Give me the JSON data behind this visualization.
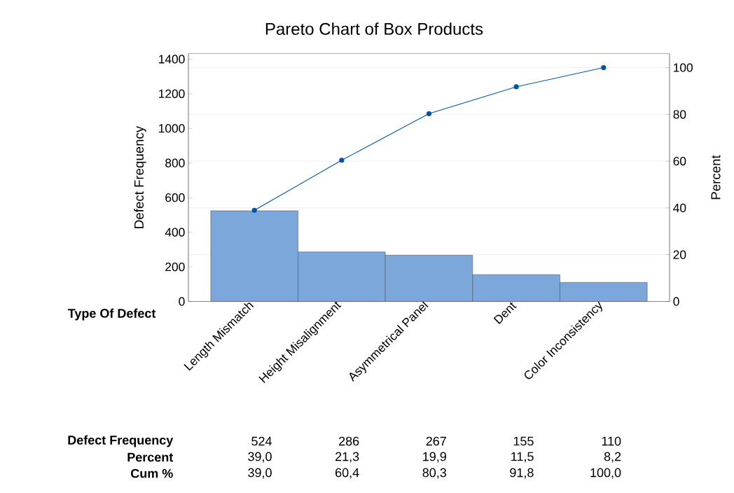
{
  "chart_data": {
    "type": "bar",
    "title": "Pareto Chart of Box Products",
    "xlabel": "Type Of Defect",
    "ylabel": "Defect Frequency",
    "y2label": "Percent",
    "categories": [
      "Length Mismatch",
      "Height Misalignment",
      "Asymmetrical Panel",
      "Dent",
      "Color Inconsistency"
    ],
    "series": [
      {
        "color": "#7ba7db",
        "values": [
          524,
          286,
          267,
          155,
          110
        ],
        "value_labels": [
          "524",
          "286",
          "267",
          "155",
          "110"
        ]
      },
      {
        "type": "line",
        "axis": "y2",
        "color": "#0054a5",
        "marker": "circle",
        "values": [
          39.0,
          60.4,
          80.3,
          91.8,
          100.0
        ],
        "value_labels": [
          "39,0",
          "60,4",
          "80,3",
          "91,8",
          "100,0"
        ]
      }
    ],
    "annotations": [
      "Defect Frequency",
      "Percent",
      "Cum %",
      "39,0",
      "21,3",
      "19,9",
      "11,5",
      "8,2"
    ],
    "ylim": [
      0,
      1432
    ],
    "yticks": [
      0,
      200,
      400,
      600,
      800,
      1000,
      1200,
      1400
    ],
    "y2lim": [
      0,
      106
    ],
    "y2ticks": [
      0,
      20,
      40,
      60,
      80,
      100
    ],
    "grid": "y"
  }
}
